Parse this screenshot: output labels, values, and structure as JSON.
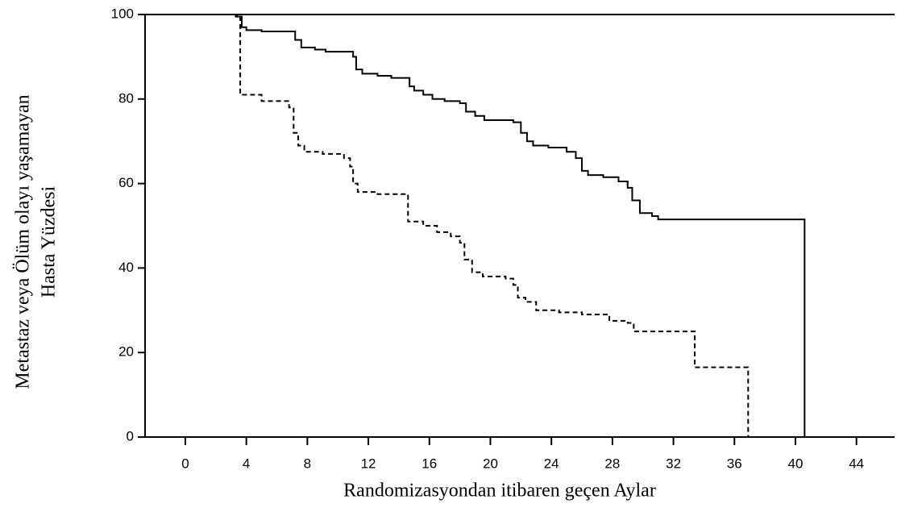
{
  "chart_data": {
    "type": "line",
    "xlabel": "Randomizasyondan itibaren geçen Aylar",
    "ylabel": [
      "Metastaz veya Ölüm olayı yaşamayan",
      "Hasta Yüzdesi"
    ],
    "xlim": [
      -2.64,
      46.5
    ],
    "ylim": [
      0,
      100
    ],
    "xticks": [
      0,
      4,
      8,
      12,
      16,
      20,
      24,
      28,
      32,
      36,
      40,
      44
    ],
    "yticks": [
      0,
      20,
      40,
      60,
      80,
      100
    ],
    "grid": false,
    "series": [
      {
        "color": "#000000",
        "dash": "solid",
        "x": [
          0,
          3.3,
          3.3,
          3.7,
          3.7,
          4,
          4,
          5,
          5,
          7.2,
          7.2,
          7.6,
          7.6,
          8.5,
          8.5,
          9.2,
          9.2,
          11,
          11,
          11.2,
          11.2,
          11.6,
          11.6,
          12.6,
          12.6,
          13.5,
          13.5,
          14.7,
          14.7,
          15,
          15,
          15.6,
          15.6,
          16.2,
          16.2,
          17,
          17,
          18,
          18,
          18.4,
          18.4,
          19,
          19,
          19.6,
          19.6,
          21.5,
          21.5,
          22,
          22,
          22.4,
          22.4,
          22.8,
          22.8,
          23.8,
          23.8,
          25,
          25,
          25.6,
          25.6,
          26,
          26,
          26.4,
          26.4,
          27.4,
          27.4,
          28.4,
          28.4,
          29,
          29,
          29.3,
          29.3,
          29.8,
          29.8,
          30.6,
          30.6,
          31,
          31,
          40.6,
          40.6
        ],
        "values": [
          100,
          100,
          99.5,
          99.5,
          97,
          97,
          96.3,
          96.3,
          96,
          96,
          94,
          94,
          92.2,
          92.2,
          91.7,
          91.7,
          91.2,
          91.2,
          90,
          90,
          87,
          87,
          86,
          86,
          85.5,
          85.5,
          85,
          85,
          83,
          83,
          82,
          82,
          81,
          81,
          80,
          80,
          79.5,
          79.5,
          79,
          79,
          77,
          77,
          76,
          76,
          75,
          75,
          74.5,
          74.5,
          72,
          72,
          70,
          70,
          69,
          69,
          68.5,
          68.5,
          67.5,
          67.5,
          66,
          66,
          63,
          63,
          62,
          62,
          61.5,
          61.5,
          60.5,
          60.5,
          59,
          59,
          56,
          56,
          53,
          53,
          52.3,
          52.3,
          51.5,
          51.5,
          0
        ]
      },
      {
        "color": "#000000",
        "dash": "dashed",
        "x": [
          0,
          3.4,
          3.4,
          3.6,
          3.6,
          5,
          5,
          6.8,
          6.8,
          7.1,
          7.1,
          7.4,
          7.4,
          7.8,
          7.8,
          9,
          9,
          10.4,
          10.4,
          10.8,
          10.8,
          11,
          11,
          11.3,
          11.3,
          12.6,
          12.6,
          14.6,
          14.6,
          15.6,
          15.6,
          16.5,
          16.5,
          17.4,
          17.4,
          18,
          18,
          18.3,
          18.3,
          18.8,
          18.8,
          19.5,
          19.5,
          21,
          21,
          21.5,
          21.5,
          21.8,
          21.8,
          22.3,
          22.3,
          23,
          23,
          24.5,
          24.5,
          26,
          26,
          27.8,
          27.8,
          29,
          29,
          29.4,
          29.4,
          33.4,
          33.4,
          36.9,
          36.9
        ],
        "values": [
          100,
          100,
          99.5,
          99.5,
          81,
          81,
          79.5,
          79.5,
          78,
          78,
          72,
          72,
          69,
          69,
          67.5,
          67.5,
          67,
          67,
          66,
          66,
          64,
          64,
          60,
          60,
          58,
          58,
          57.5,
          57.5,
          51,
          51,
          50,
          50,
          48.5,
          48.5,
          47.5,
          47.5,
          46,
          46,
          42,
          42,
          39,
          39,
          38,
          38,
          37.5,
          37.5,
          36,
          36,
          33,
          33,
          32,
          32,
          30,
          30,
          29.5,
          29.5,
          29,
          29,
          27.5,
          27.5,
          27,
          27,
          25,
          25,
          16.5,
          16.5,
          0
        ]
      }
    ]
  }
}
